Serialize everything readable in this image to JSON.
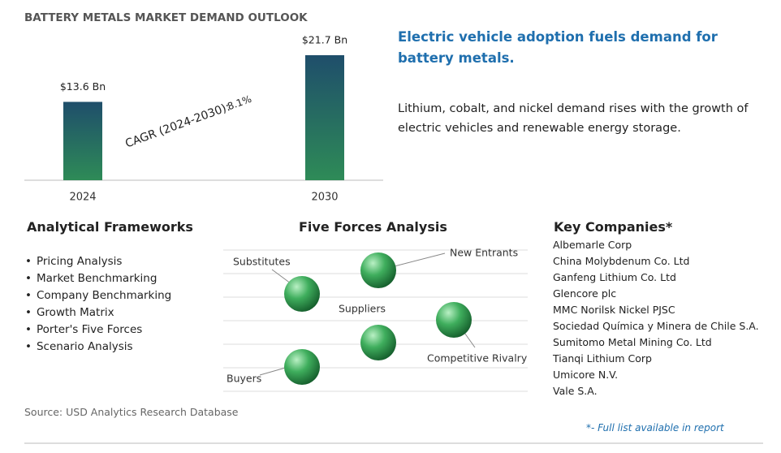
{
  "chart_data": {
    "type": "bar",
    "title": "BATTERY METALS MARKET DEMAND OUTLOOK",
    "categories": [
      "2024",
      "2030"
    ],
    "values": [
      13.6,
      21.7
    ],
    "value_labels": [
      "$13.6 Bn",
      "$21.7 Bn"
    ],
    "annotations": [
      "CAGR (2024-2030):",
      "8.1%"
    ],
    "color": [
      "#1f4e6b",
      "#2e8b57"
    ]
  },
  "headline": "Electric vehicle adoption fuels demand for battery metals.",
  "body": "Lithium, cobalt, and nickel demand rises with the growth of electric vehicles and renewable energy storage.",
  "frameworks": {
    "title": "Analytical Frameworks",
    "items": [
      "Pricing Analysis",
      "Market Benchmarking",
      "Company Benchmarking",
      "Growth Matrix",
      "Porter's Five Forces",
      "Scenario Analysis"
    ]
  },
  "five_forces": {
    "title": "Five Forces Analysis",
    "labels": [
      "Substitutes",
      "New Entrants",
      "Suppliers",
      "Competitive Rivalry",
      "Buyers"
    ]
  },
  "companies": {
    "title": "Key Companies*",
    "items": [
      "Albemarle Corp",
      "China Molybdenum Co. Ltd",
      "Ganfeng Lithium Co. Ltd",
      "Glencore plc",
      "MMC Norilsk Nickel PJSC",
      "Sociedad Química y Minera de Chile S.A.",
      "Sumitomo Metal Mining Co. Ltd",
      "Tianqi Lithium Corp",
      "Umicore N.V.",
      "Vale S.A."
    ]
  },
  "source": "Source: USD Analytics Research Database",
  "footnote": "*- Full list available in report"
}
